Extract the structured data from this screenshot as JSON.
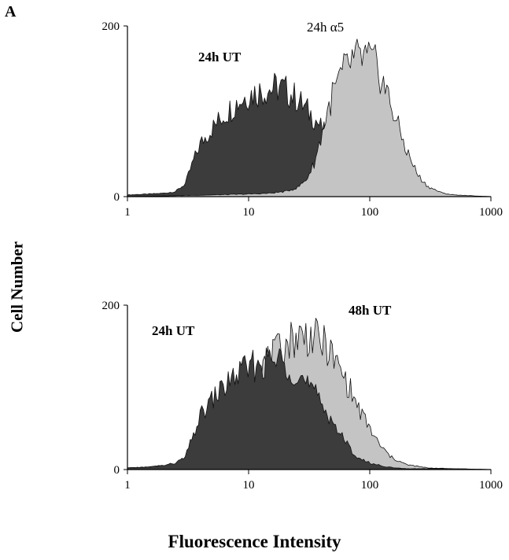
{
  "figure": {
    "panel_label": "A",
    "ylabel": "Cell Number",
    "xlabel": "Fluorescence Intensity"
  },
  "colors": {
    "dark_fill": "#3c3c3c",
    "light_fill": "#c4c4c4",
    "outline": "#111111"
  },
  "chart_data": [
    {
      "type": "area",
      "name": "top",
      "xscale": "log",
      "xlim": [
        1,
        1000
      ],
      "ylim": [
        0,
        200
      ],
      "xticks": [
        "1",
        "10",
        "100",
        "1000"
      ],
      "yticks": [
        "0",
        "200"
      ],
      "series": [
        {
          "name": "24h UT",
          "label_bold": true,
          "fill": "dark",
          "x": [
            1,
            1.5,
            2,
            2.5,
            3,
            3.5,
            4,
            5,
            6,
            7,
            8,
            9,
            10,
            12,
            14,
            16,
            18,
            20,
            25,
            30,
            35,
            40,
            50,
            60,
            70,
            80,
            100,
            130,
            160,
            200,
            300,
            500,
            1000
          ],
          "y": [
            2,
            3,
            4,
            6,
            15,
            42,
            62,
            80,
            93,
            102,
            110,
            115,
            120,
            123,
            125,
            127,
            128,
            125,
            115,
            102,
            92,
            80,
            60,
            40,
            25,
            15,
            8,
            4,
            2,
            1,
            1,
            1,
            0
          ]
        },
        {
          "name": "24h α5",
          "label_bold": false,
          "fill": "light",
          "x": [
            1,
            5,
            10,
            15,
            20,
            25,
            30,
            35,
            40,
            45,
            50,
            60,
            70,
            80,
            90,
            100,
            110,
            120,
            140,
            160,
            200,
            250,
            300,
            400,
            500,
            700,
            1000
          ],
          "y": [
            0,
            2,
            3,
            4,
            6,
            10,
            20,
            40,
            72,
            100,
            122,
            145,
            158,
            162,
            163,
            160,
            155,
            145,
            120,
            95,
            55,
            25,
            12,
            4,
            2,
            1,
            0
          ]
        }
      ]
    },
    {
      "type": "area",
      "name": "bottom",
      "xscale": "log",
      "xlim": [
        1,
        1000
      ],
      "ylim": [
        0,
        200
      ],
      "xticks": [
        "1",
        "10",
        "100",
        "1000"
      ],
      "yticks": [
        "0",
        "200"
      ],
      "series": [
        {
          "name": "48h UT",
          "label_bold": true,
          "fill": "light",
          "x": [
            1,
            1.5,
            2,
            2.5,
            3,
            3.5,
            4,
            5,
            6,
            8,
            10,
            14,
            18,
            22,
            25,
            30,
            35,
            40,
            45,
            50,
            60,
            70,
            80,
            100,
            120,
            150,
            200,
            300,
            500,
            1000
          ],
          "y": [
            2,
            3,
            5,
            7,
            10,
            25,
            40,
            60,
            78,
            100,
            115,
            130,
            145,
            158,
            162,
            163,
            160,
            155,
            148,
            135,
            115,
            95,
            75,
            50,
            30,
            15,
            6,
            2,
            1,
            0
          ]
        },
        {
          "name": "24h UT",
          "label_bold": true,
          "fill": "dark",
          "x": [
            1,
            1.5,
            2,
            2.5,
            3,
            3.5,
            4,
            5,
            6,
            7,
            8,
            9,
            10,
            12,
            14,
            16,
            18,
            20,
            25,
            30,
            35,
            40,
            50,
            60,
            70,
            80,
            100,
            130,
            160,
            200,
            300,
            500,
            1000
          ],
          "y": [
            2,
            3,
            5,
            8,
            15,
            42,
            65,
            85,
            98,
            108,
            115,
            120,
            124,
            127,
            130,
            132,
            133,
            130,
            118,
            104,
            92,
            80,
            58,
            38,
            24,
            14,
            8,
            4,
            2,
            1,
            1,
            1,
            0
          ]
        }
      ]
    }
  ]
}
